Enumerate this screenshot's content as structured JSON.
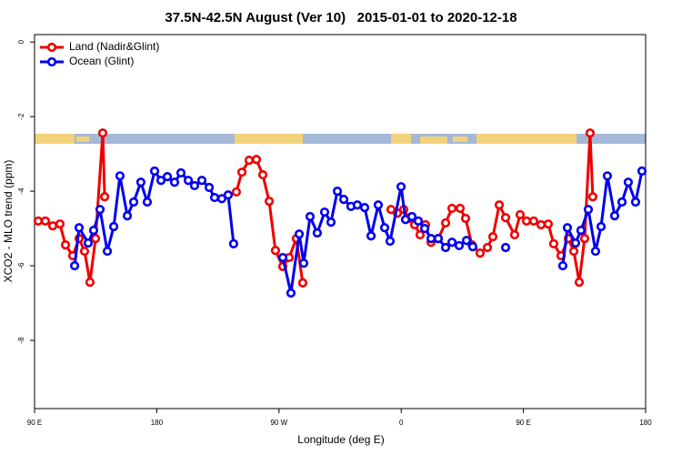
{
  "chart_data": {
    "type": "line",
    "title": "37.5N-42.5N August (Ver 10)   2015-01-01 to 2020-12-18",
    "xlabel": "Longitude (deg E)",
    "ylabel": "XCO2 - MLO trend (ppm)",
    "xlim": [
      90,
      540
    ],
    "xticks": [
      {
        "value": 90,
        "label": "90 E"
      },
      180,
      {
        "value": 270,
        "label": "90 W"
      },
      {
        "value": 360,
        "label": "0"
      },
      {
        "value": 450,
        "label": "90 E"
      },
      {
        "value": 540,
        "label": "180"
      }
    ],
    "ylim": [
      -9.83,
      0.2
    ],
    "yticks": [
      0,
      -2,
      -4,
      -6,
      -8
    ],
    "legend": "top-left",
    "series": [
      {
        "name": "Land (Nadir&Glint)",
        "color": "#ee0000",
        "x": [
          92.7,
          98.0,
          103.4,
          108.7,
          112.8,
          118.1,
          122.8,
          126.8,
          130.8,
          134.9,
          140.2,
          141.6,
          null,
          238.6,
          242.7,
          248.0,
          253.4,
          258.1,
          262.8,
          267.4,
          272.8,
          277.5,
          282.8,
          287.5,
          null,
          352.5,
          357.2,
          361.9,
          365.9,
          369.9,
          373.9,
          377.9,
          382.0,
          387.3,
          392.7,
          397.4,
          403.4,
          407.4,
          412.1,
          418.1,
          423.5,
          427.5,
          432.2,
          436.9,
          443.5,
          447.6,
          452.3,
          457.6,
          463.0,
          468.3,
          472.3,
          477.7,
          483.1,
          487.1,
          491.1,
          495.1,
          499.1,
          501.1
        ],
        "values": [
          -4.8,
          -4.8,
          -4.93,
          -4.88,
          -5.44,
          -5.73,
          -5.27,
          -5.61,
          -6.44,
          -5.27,
          -2.44,
          -4.15,
          null,
          -4.02,
          -3.49,
          -3.17,
          -3.15,
          -3.56,
          -4.27,
          -5.59,
          -6.02,
          -5.78,
          -5.27,
          -6.46,
          null,
          -4.49,
          -4.59,
          -4.49,
          -4.73,
          -4.9,
          -5.17,
          -4.9,
          -5.37,
          -5.27,
          -4.85,
          -4.46,
          -4.46,
          -4.73,
          -5.44,
          -5.66,
          -5.51,
          -5.22,
          -4.37,
          -4.71,
          -5.17,
          -4.63,
          -4.8,
          -4.8,
          -4.9,
          -4.88,
          -5.41,
          -5.73,
          -5.27,
          -5.61,
          -6.44,
          -5.27,
          -2.44,
          -4.15
        ]
      },
      {
        "name": "Ocean (Glint)",
        "color": "#0000ee",
        "x": [
          119.5,
          122.8,
          129.5,
          133.5,
          138.2,
          143.6,
          148.3,
          152.9,
          158.3,
          163.0,
          168.3,
          173.0,
          178.4,
          183.1,
          187.8,
          193.1,
          197.8,
          203.2,
          207.8,
          213.2,
          218.6,
          222.6,
          227.9,
          232.6,
          236.6,
          null,
          272.8,
          278.8,
          284.9,
          288.2,
          292.9,
          298.2,
          303.6,
          308.3,
          313.0,
          317.7,
          323.0,
          327.7,
          333.1,
          337.8,
          343.1,
          347.8,
          351.8,
          359.9,
          363.2,
          367.9,
          372.6,
          377.3,
          382.0,
          387.3,
          392.7,
          397.4,
          402.7,
          408.1,
          412.7,
          null,
          436.9,
          null,
          479.0,
          482.4,
          488.4,
          492.4,
          497.8,
          503.1,
          507.2,
          511.8,
          517.2,
          522.6,
          527.2,
          532.6,
          537.3
        ],
        "values": [
          -6.0,
          -4.98,
          -5.39,
          -5.05,
          -4.49,
          -5.61,
          -4.95,
          -3.59,
          -4.66,
          -4.29,
          -3.76,
          -4.29,
          -3.46,
          -3.71,
          -3.61,
          -3.76,
          -3.51,
          -3.71,
          -3.85,
          -3.71,
          -3.9,
          -4.17,
          -4.2,
          -4.1,
          -5.41,
          null,
          -5.78,
          -6.73,
          -5.15,
          -5.93,
          -4.68,
          -5.12,
          -4.56,
          -4.83,
          -4.0,
          -4.22,
          -4.41,
          -4.37,
          -4.44,
          -5.2,
          -4.37,
          -4.98,
          -5.34,
          -3.88,
          -4.76,
          -4.68,
          -4.8,
          -5.0,
          -5.27,
          -5.27,
          -5.51,
          -5.37,
          -5.46,
          -5.32,
          -5.49,
          null,
          -5.51,
          null,
          -6.0,
          -4.98,
          -5.39,
          -5.05,
          -4.49,
          -5.61,
          -4.95,
          -3.59,
          -4.66,
          -4.29,
          -3.76,
          -4.29,
          -3.46
        ]
      }
    ]
  }
}
